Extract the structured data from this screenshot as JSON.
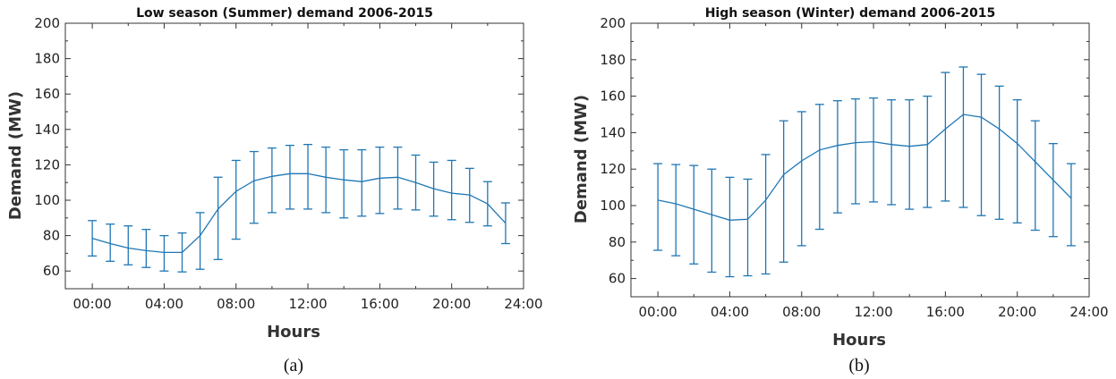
{
  "chart_data": [
    {
      "type": "line",
      "title": "Low season (Summer) demand 2006-2015",
      "xlabel": "Hours",
      "ylabel": "Demand (MW)",
      "panel_label": "(a)",
      "x": [
        0,
        1,
        2,
        3,
        4,
        5,
        6,
        7,
        8,
        9,
        10,
        11,
        12,
        13,
        14,
        15,
        16,
        17,
        18,
        19,
        20,
        21,
        22,
        23
      ],
      "y": [
        78.5,
        75.5,
        73,
        71.5,
        70.5,
        70.5,
        80,
        95,
        105,
        111,
        113.5,
        115,
        115,
        113,
        111.5,
        110.5,
        112.5,
        113,
        110,
        106.5,
        104,
        103,
        98,
        87
      ],
      "y_upper": [
        88.5,
        86.5,
        85.5,
        83.5,
        80,
        81.5,
        93,
        113,
        122.5,
        127.5,
        129.5,
        131,
        131.5,
        130,
        128.5,
        128.5,
        130,
        130,
        125.5,
        121.5,
        122.5,
        118,
        110.5,
        98.5
      ],
      "y_lower": [
        68.5,
        65.5,
        63.5,
        62,
        60,
        59.5,
        61,
        66.5,
        78,
        87,
        93,
        95,
        95,
        93,
        90,
        91,
        92.5,
        95,
        94.5,
        91,
        89,
        87.5,
        85.5,
        75.5
      ],
      "xlim": [
        -1.5,
        24
      ],
      "ylim": [
        50,
        200
      ],
      "x_ticks": [
        0,
        4,
        8,
        12,
        16,
        20,
        24
      ],
      "x_tick_labels": [
        "00:00",
        "04:00",
        "08:00",
        "12:00",
        "16:00",
        "20:00",
        "24:00"
      ],
      "y_ticks": [
        60,
        80,
        100,
        120,
        140,
        160,
        180,
        200
      ],
      "y_tick_labels": [
        "60",
        "80",
        "100",
        "120",
        "140",
        "160",
        "180",
        "200"
      ],
      "grid": false,
      "color": "#1f77b4"
    },
    {
      "type": "line",
      "title": "High season (Winter) demand 2006-2015",
      "xlabel": "Hours",
      "ylabel": "Demand (MW)",
      "panel_label": "(b)",
      "x": [
        0,
        1,
        2,
        3,
        4,
        5,
        6,
        7,
        8,
        9,
        10,
        11,
        12,
        13,
        14,
        15,
        16,
        17,
        18,
        19,
        20,
        21,
        22,
        23
      ],
      "y": [
        103,
        101,
        98,
        95,
        92,
        92.5,
        103,
        117,
        124.5,
        130.5,
        133,
        134.5,
        135,
        133.5,
        132.5,
        133.5,
        142,
        150,
        148.5,
        142,
        134,
        124,
        114,
        104
      ],
      "y_upper": [
        123,
        122.5,
        122,
        120,
        115.5,
        114.5,
        128,
        146.5,
        151.5,
        155.5,
        157.5,
        158.5,
        159,
        158,
        158,
        160,
        173,
        176,
        172,
        165.5,
        158,
        146.5,
        134,
        123
      ],
      "y_lower": [
        75.5,
        72.5,
        68,
        63.5,
        61,
        61.5,
        62.5,
        69,
        78,
        87,
        96,
        101,
        102,
        100.5,
        98,
        99,
        102.5,
        99,
        94.5,
        92.5,
        90.5,
        86.5,
        83,
        78
      ],
      "xlim": [
        -1.5,
        24
      ],
      "ylim": [
        50,
        200
      ],
      "x_ticks": [
        0,
        4,
        8,
        12,
        16,
        20,
        24
      ],
      "x_tick_labels": [
        "00:00",
        "04:00",
        "08:00",
        "12:00",
        "16:00",
        "20:00",
        "24:00"
      ],
      "y_ticks": [
        60,
        80,
        100,
        120,
        140,
        160,
        180,
        200
      ],
      "y_tick_labels": [
        "60",
        "80",
        "100",
        "120",
        "140",
        "160",
        "180",
        "200"
      ],
      "grid": false,
      "color": "#1f77b4"
    }
  ]
}
